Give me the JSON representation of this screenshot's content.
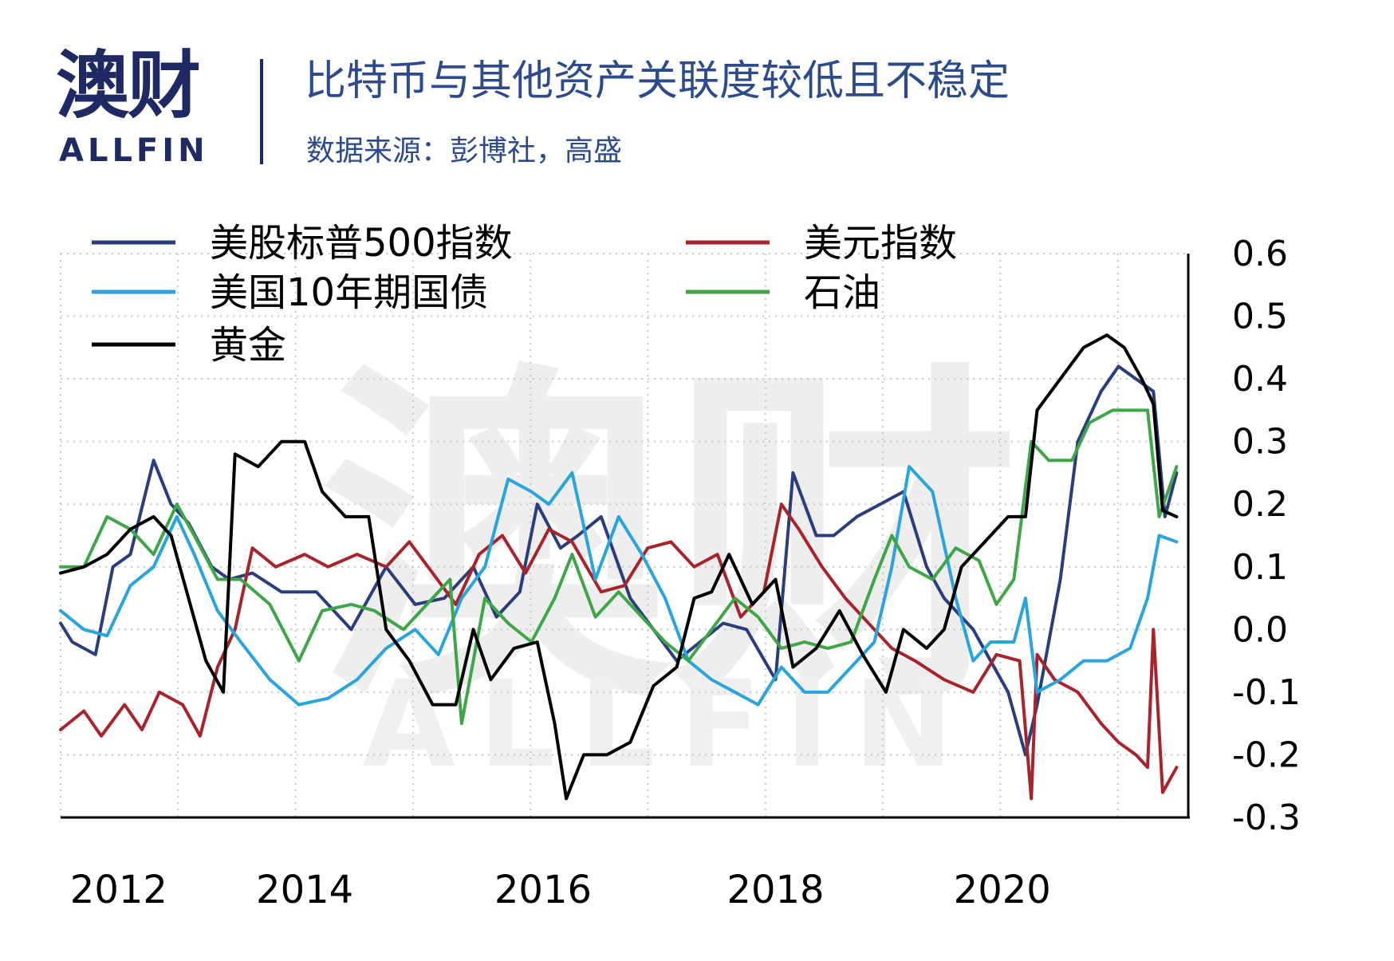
{
  "header": {
    "logo_text": "澳财",
    "logo_sub": "ALLFIN",
    "title": "比特币与其他资产关联度较低且不稳定",
    "subtitle": "数据来源：彭博社，高盛"
  },
  "watermark": {
    "text": "澳财",
    "sub": "ALLFIN"
  },
  "chart_data": {
    "type": "line",
    "title": "",
    "xlabel": "",
    "ylabel": "",
    "xlim": [
      2011.9,
      2021.6
    ],
    "ylim": [
      -0.3,
      0.6
    ],
    "x_ticks": [
      "2012",
      "2014",
      "2016",
      "2018",
      "2020"
    ],
    "x_tick_values": [
      2012.4,
      2014.0,
      2016.05,
      2018.05,
      2020.0
    ],
    "y_ticks": [
      "0.6",
      "0.5",
      "0.4",
      "0.3",
      "0.2",
      "0.1",
      "0.0",
      "-0.1",
      "-0.2",
      "-0.3"
    ],
    "y_tick_values": [
      0.6,
      0.5,
      0.4,
      0.3,
      0.2,
      0.1,
      0.0,
      -0.1,
      -0.2,
      -0.3
    ],
    "y_axis_position": "right",
    "grid": "dotted",
    "legend_position": "top",
    "series": [
      {
        "name": "美股标普500指数",
        "color": "#2a3e7e",
        "points": [
          [
            2011.9,
            0.01
          ],
          [
            2012.0,
            -0.02
          ],
          [
            2012.2,
            -0.04
          ],
          [
            2012.35,
            0.1
          ],
          [
            2012.5,
            0.12
          ],
          [
            2012.7,
            0.27
          ],
          [
            2012.85,
            0.2
          ],
          [
            2013.0,
            0.17
          ],
          [
            2013.2,
            0.1
          ],
          [
            2013.35,
            0.08
          ],
          [
            2013.55,
            0.09
          ],
          [
            2013.8,
            0.06
          ],
          [
            2014.1,
            0.06
          ],
          [
            2014.4,
            0.0
          ],
          [
            2014.7,
            0.1
          ],
          [
            2014.95,
            0.04
          ],
          [
            2015.2,
            0.05
          ],
          [
            2015.45,
            0.1
          ],
          [
            2015.65,
            0.02
          ],
          [
            2015.85,
            0.06
          ],
          [
            2016.0,
            0.2
          ],
          [
            2016.2,
            0.13
          ],
          [
            2016.35,
            0.15
          ],
          [
            2016.55,
            0.18
          ],
          [
            2016.8,
            0.05
          ],
          [
            2017.0,
            0.0
          ],
          [
            2017.2,
            -0.05
          ],
          [
            2017.4,
            -0.02
          ],
          [
            2017.6,
            0.01
          ],
          [
            2017.8,
            0.0
          ],
          [
            2018.05,
            -0.08
          ],
          [
            2018.2,
            0.25
          ],
          [
            2018.4,
            0.15
          ],
          [
            2018.55,
            0.15
          ],
          [
            2018.75,
            0.18
          ],
          [
            2018.95,
            0.2
          ],
          [
            2019.15,
            0.22
          ],
          [
            2019.35,
            0.1
          ],
          [
            2019.5,
            0.05
          ],
          [
            2019.75,
            0.0
          ],
          [
            2019.9,
            -0.05
          ],
          [
            2020.05,
            -0.1
          ],
          [
            2020.2,
            -0.2
          ],
          [
            2020.3,
            -0.12
          ],
          [
            2020.5,
            0.08
          ],
          [
            2020.65,
            0.3
          ],
          [
            2020.85,
            0.38
          ],
          [
            2021.0,
            0.42
          ],
          [
            2021.15,
            0.4
          ],
          [
            2021.3,
            0.38
          ],
          [
            2021.4,
            0.18
          ],
          [
            2021.5,
            0.25
          ]
        ]
      },
      {
        "name": "美元指数",
        "color": "#a8232b",
        "points": [
          [
            2011.9,
            -0.16
          ],
          [
            2012.1,
            -0.13
          ],
          [
            2012.25,
            -0.17
          ],
          [
            2012.45,
            -0.12
          ],
          [
            2012.6,
            -0.16
          ],
          [
            2012.75,
            -0.1
          ],
          [
            2012.95,
            -0.12
          ],
          [
            2013.1,
            -0.17
          ],
          [
            2013.25,
            -0.06
          ],
          [
            2013.4,
            0.0
          ],
          [
            2013.55,
            0.13
          ],
          [
            2013.75,
            0.1
          ],
          [
            2014.0,
            0.12
          ],
          [
            2014.2,
            0.1
          ],
          [
            2014.45,
            0.12
          ],
          [
            2014.7,
            0.1
          ],
          [
            2014.9,
            0.14
          ],
          [
            2015.1,
            0.09
          ],
          [
            2015.3,
            0.04
          ],
          [
            2015.5,
            0.12
          ],
          [
            2015.7,
            0.15
          ],
          [
            2015.9,
            0.09
          ],
          [
            2016.1,
            0.16
          ],
          [
            2016.3,
            0.14
          ],
          [
            2016.55,
            0.06
          ],
          [
            2016.75,
            0.07
          ],
          [
            2016.95,
            0.13
          ],
          [
            2017.15,
            0.14
          ],
          [
            2017.35,
            0.1
          ],
          [
            2017.55,
            0.12
          ],
          [
            2017.75,
            0.02
          ],
          [
            2017.95,
            0.06
          ],
          [
            2018.1,
            0.2
          ],
          [
            2018.25,
            0.16
          ],
          [
            2018.45,
            0.1
          ],
          [
            2018.65,
            0.05
          ],
          [
            2018.9,
            0.0
          ],
          [
            2019.05,
            -0.03
          ],
          [
            2019.25,
            -0.05
          ],
          [
            2019.5,
            -0.08
          ],
          [
            2019.75,
            -0.1
          ],
          [
            2019.95,
            -0.04
          ],
          [
            2020.15,
            -0.05
          ],
          [
            2020.25,
            -0.27
          ],
          [
            2020.3,
            -0.04
          ],
          [
            2020.45,
            -0.08
          ],
          [
            2020.65,
            -0.1
          ],
          [
            2020.85,
            -0.15
          ],
          [
            2021.0,
            -0.18
          ],
          [
            2021.15,
            -0.2
          ],
          [
            2021.25,
            -0.22
          ],
          [
            2021.3,
            0.0
          ],
          [
            2021.38,
            -0.26
          ],
          [
            2021.5,
            -0.22
          ]
        ]
      },
      {
        "name": "美国10年期国债",
        "color": "#29a4dc",
        "points": [
          [
            2011.9,
            0.03
          ],
          [
            2012.1,
            0.0
          ],
          [
            2012.3,
            -0.01
          ],
          [
            2012.5,
            0.07
          ],
          [
            2012.7,
            0.1
          ],
          [
            2012.9,
            0.18
          ],
          [
            2013.05,
            0.12
          ],
          [
            2013.25,
            0.03
          ],
          [
            2013.45,
            -0.02
          ],
          [
            2013.7,
            -0.08
          ],
          [
            2013.95,
            -0.12
          ],
          [
            2014.2,
            -0.11
          ],
          [
            2014.45,
            -0.08
          ],
          [
            2014.7,
            -0.03
          ],
          [
            2014.95,
            0.0
          ],
          [
            2015.15,
            -0.04
          ],
          [
            2015.35,
            0.05
          ],
          [
            2015.55,
            0.1
          ],
          [
            2015.75,
            0.24
          ],
          [
            2015.95,
            0.22
          ],
          [
            2016.1,
            0.2
          ],
          [
            2016.3,
            0.25
          ],
          [
            2016.5,
            0.08
          ],
          [
            2016.7,
            0.18
          ],
          [
            2016.9,
            0.12
          ],
          [
            2017.1,
            0.05
          ],
          [
            2017.3,
            -0.05
          ],
          [
            2017.5,
            -0.08
          ],
          [
            2017.7,
            -0.1
          ],
          [
            2017.9,
            -0.12
          ],
          [
            2018.1,
            -0.06
          ],
          [
            2018.3,
            -0.1
          ],
          [
            2018.5,
            -0.1
          ],
          [
            2018.7,
            -0.06
          ],
          [
            2018.9,
            -0.02
          ],
          [
            2019.05,
            0.1
          ],
          [
            2019.2,
            0.26
          ],
          [
            2019.4,
            0.22
          ],
          [
            2019.6,
            0.05
          ],
          [
            2019.75,
            -0.05
          ],
          [
            2019.9,
            -0.02
          ],
          [
            2020.1,
            -0.02
          ],
          [
            2020.2,
            0.05
          ],
          [
            2020.3,
            -0.1
          ],
          [
            2020.5,
            -0.08
          ],
          [
            2020.7,
            -0.05
          ],
          [
            2020.9,
            -0.05
          ],
          [
            2021.1,
            -0.03
          ],
          [
            2021.25,
            0.05
          ],
          [
            2021.35,
            0.15
          ],
          [
            2021.5,
            0.14
          ]
        ]
      },
      {
        "name": "石油",
        "color": "#3fa648",
        "points": [
          [
            2011.9,
            0.1
          ],
          [
            2012.1,
            0.1
          ],
          [
            2012.3,
            0.18
          ],
          [
            2012.5,
            0.16
          ],
          [
            2012.7,
            0.12
          ],
          [
            2012.9,
            0.2
          ],
          [
            2013.05,
            0.15
          ],
          [
            2013.25,
            0.08
          ],
          [
            2013.45,
            0.08
          ],
          [
            2013.7,
            0.04
          ],
          [
            2013.95,
            -0.05
          ],
          [
            2014.15,
            0.03
          ],
          [
            2014.4,
            0.04
          ],
          [
            2014.6,
            0.03
          ],
          [
            2014.85,
            0.0
          ],
          [
            2015.05,
            0.04
          ],
          [
            2015.25,
            0.08
          ],
          [
            2015.35,
            -0.15
          ],
          [
            2015.55,
            0.05
          ],
          [
            2015.75,
            0.01
          ],
          [
            2015.95,
            -0.02
          ],
          [
            2016.15,
            0.05
          ],
          [
            2016.3,
            0.12
          ],
          [
            2016.5,
            0.02
          ],
          [
            2016.7,
            0.06
          ],
          [
            2016.9,
            0.02
          ],
          [
            2017.1,
            -0.02
          ],
          [
            2017.3,
            -0.05
          ],
          [
            2017.5,
            0.0
          ],
          [
            2017.7,
            0.05
          ],
          [
            2017.9,
            0.02
          ],
          [
            2018.1,
            -0.03
          ],
          [
            2018.3,
            -0.02
          ],
          [
            2018.5,
            -0.03
          ],
          [
            2018.7,
            -0.02
          ],
          [
            2018.9,
            0.08
          ],
          [
            2019.05,
            0.15
          ],
          [
            2019.2,
            0.1
          ],
          [
            2019.4,
            0.08
          ],
          [
            2019.6,
            0.13
          ],
          [
            2019.8,
            0.11
          ],
          [
            2019.95,
            0.04
          ],
          [
            2020.1,
            0.08
          ],
          [
            2020.25,
            0.3
          ],
          [
            2020.4,
            0.27
          ],
          [
            2020.6,
            0.27
          ],
          [
            2020.75,
            0.33
          ],
          [
            2020.95,
            0.35
          ],
          [
            2021.1,
            0.35
          ],
          [
            2021.25,
            0.35
          ],
          [
            2021.35,
            0.18
          ],
          [
            2021.5,
            0.26
          ]
        ]
      },
      {
        "name": "黄金",
        "color": "#000000",
        "points": [
          [
            2011.9,
            0.09
          ],
          [
            2012.1,
            0.1
          ],
          [
            2012.3,
            0.12
          ],
          [
            2012.5,
            0.16
          ],
          [
            2012.7,
            0.18
          ],
          [
            2012.85,
            0.15
          ],
          [
            2013.0,
            0.05
          ],
          [
            2013.15,
            -0.05
          ],
          [
            2013.3,
            -0.1
          ],
          [
            2013.4,
            0.28
          ],
          [
            2013.6,
            0.26
          ],
          [
            2013.8,
            0.3
          ],
          [
            2014.0,
            0.3
          ],
          [
            2014.15,
            0.22
          ],
          [
            2014.35,
            0.18
          ],
          [
            2014.55,
            0.18
          ],
          [
            2014.7,
            0.0
          ],
          [
            2014.9,
            -0.05
          ],
          [
            2015.1,
            -0.12
          ],
          [
            2015.3,
            -0.12
          ],
          [
            2015.45,
            0.0
          ],
          [
            2015.6,
            -0.08
          ],
          [
            2015.8,
            -0.03
          ],
          [
            2016.0,
            -0.02
          ],
          [
            2016.15,
            -0.15
          ],
          [
            2016.25,
            -0.27
          ],
          [
            2016.4,
            -0.2
          ],
          [
            2016.6,
            -0.2
          ],
          [
            2016.8,
            -0.18
          ],
          [
            2017.0,
            -0.09
          ],
          [
            2017.2,
            -0.06
          ],
          [
            2017.35,
            0.05
          ],
          [
            2017.5,
            0.06
          ],
          [
            2017.65,
            0.12
          ],
          [
            2017.85,
            0.04
          ],
          [
            2018.05,
            0.08
          ],
          [
            2018.2,
            -0.06
          ],
          [
            2018.4,
            -0.03
          ],
          [
            2018.6,
            0.03
          ],
          [
            2018.8,
            -0.04
          ],
          [
            2019.0,
            -0.1
          ],
          [
            2019.15,
            0.0
          ],
          [
            2019.35,
            -0.03
          ],
          [
            2019.5,
            0.0
          ],
          [
            2019.65,
            0.1
          ],
          [
            2019.85,
            0.14
          ],
          [
            2020.05,
            0.18
          ],
          [
            2020.2,
            0.18
          ],
          [
            2020.3,
            0.35
          ],
          [
            2020.5,
            0.4
          ],
          [
            2020.7,
            0.45
          ],
          [
            2020.9,
            0.47
          ],
          [
            2021.05,
            0.45
          ],
          [
            2021.2,
            0.4
          ],
          [
            2021.3,
            0.36
          ],
          [
            2021.38,
            0.19
          ],
          [
            2021.5,
            0.18
          ]
        ]
      }
    ]
  }
}
